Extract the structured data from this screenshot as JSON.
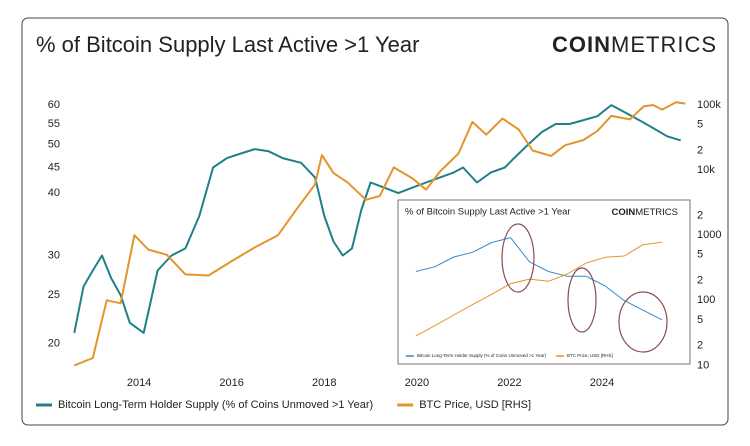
{
  "chart_data": [
    {
      "type": "line",
      "title": "% of Bitcoin Supply Last Active >1 Year",
      "logo": {
        "bold": "COIN",
        "light": "METRICS"
      },
      "xlim": [
        2012.4,
        2025.9
      ],
      "xticks": [
        2014,
        2016,
        2018,
        2020,
        2022,
        2024
      ],
      "ylim": [
        17.7,
        62
      ],
      "log_y": true,
      "yticks": [
        20,
        25,
        30,
        40,
        45,
        50,
        55,
        60
      ],
      "y2lim": [
        8.5,
        128000
      ],
      "log_y2": true,
      "y2ticks": [
        {
          "value": 100000,
          "label": "100k"
        },
        {
          "value": 50000,
          "label": "5"
        },
        {
          "value": 20000,
          "label": "2"
        },
        {
          "value": 10000,
          "label": "10k"
        },
        {
          "value": 2000,
          "label": "2"
        },
        1000,
        {
          "value": 500,
          "label": "5"
        },
        {
          "value": 200,
          "label": "2"
        },
        100,
        {
          "value": 50,
          "label": "5"
        },
        {
          "value": 20,
          "label": "2"
        },
        10
      ],
      "grid": false,
      "series": [
        {
          "name": "Bitcoin Long-Term Holder Supply (% of Coins Unmoved >1 Year)",
          "color": "#1f8088",
          "x": [
            2012.6,
            2012.8,
            2013.0,
            2013.2,
            2013.4,
            2013.6,
            2013.8,
            2014.1,
            2014.4,
            2014.7,
            2015.0,
            2015.3,
            2015.6,
            2015.9,
            2016.2,
            2016.5,
            2016.8,
            2017.1,
            2017.5,
            2017.8,
            2018.0,
            2018.2,
            2018.4,
            2018.6,
            2018.8,
            2019.0,
            2019.3,
            2019.6,
            2019.9,
            2020.2,
            2020.5,
            2020.8,
            2021.0,
            2021.3,
            2021.6,
            2021.9,
            2022.1,
            2022.4,
            2022.7,
            2023.0,
            2023.3,
            2023.6,
            2023.9,
            2024.0,
            2024.2,
            2024.5,
            2024.8,
            2025.1,
            2025.4,
            2025.7
          ],
          "values": [
            21,
            26,
            28,
            30,
            27,
            25,
            22,
            21,
            28,
            30,
            31,
            36,
            45,
            47,
            48,
            49,
            48.5,
            47,
            46,
            43,
            36,
            32,
            30,
            31,
            37,
            42,
            41,
            40,
            41,
            42,
            43,
            44,
            45,
            42,
            44,
            45,
            47,
            50,
            53,
            55,
            55,
            56,
            57,
            58,
            60,
            58,
            56,
            54,
            52,
            51
          ]
        },
        {
          "name": "BTC Price, USD [RHS]",
          "color": "#e3952c",
          "axis": "y2",
          "x": [
            2012.6,
            2013.0,
            2013.3,
            2013.6,
            2013.9,
            2014.2,
            2014.6,
            2015.0,
            2015.5,
            2016.0,
            2016.5,
            2017.0,
            2017.4,
            2017.8,
            2017.95,
            2018.2,
            2018.5,
            2018.9,
            2019.2,
            2019.5,
            2019.9,
            2020.2,
            2020.5,
            2020.9,
            2021.2,
            2021.5,
            2021.85,
            2022.2,
            2022.5,
            2022.9,
            2023.2,
            2023.6,
            2023.9,
            2024.2,
            2024.6,
            2024.9,
            2025.1,
            2025.3,
            2025.6,
            2025.8
          ],
          "values": [
            10,
            13,
            100,
            90,
            1000,
            600,
            500,
            250,
            240,
            400,
            650,
            1000,
            2500,
            6000,
            17000,
            9000,
            6500,
            3500,
            4000,
            11000,
            7500,
            5000,
            9500,
            18000,
            55000,
            35000,
            62000,
            42000,
            20000,
            16500,
            24000,
            29000,
            40000,
            68000,
            60000,
            95000,
            100000,
            85000,
            110000,
            105000
          ]
        }
      ]
    },
    {
      "type": "line",
      "title": "% of Bitcoin Supply Last Active >1 Year",
      "logo": {
        "bold": "COIN",
        "light": "METRICS"
      },
      "categories": [
        null,
        null,
        null,
        null,
        null,
        null,
        null,
        null,
        null,
        null,
        null,
        null,
        null,
        null
      ],
      "ylim": [
        38,
        62
      ],
      "y2lim": [
        10000,
        130000
      ],
      "log_y2": true,
      "series": [
        {
          "name": "Bitcoin Long-Term Holder Supply (% of Coins Unmoved >1 Year)",
          "color": "#3a88c8",
          "values": [
            53,
            54,
            56,
            57,
            59,
            60,
            55,
            53,
            52,
            52,
            50,
            47,
            45,
            43
          ]
        },
        {
          "name": "BTC Price, USD [RHS]",
          "color": "#e3952c",
          "axis": "y2",
          "values": [
            12000,
            15000,
            19000,
            24000,
            30000,
            38000,
            42000,
            40000,
            47000,
            60000,
            68000,
            70000,
            90000,
            95000
          ]
        }
      ]
    }
  ]
}
